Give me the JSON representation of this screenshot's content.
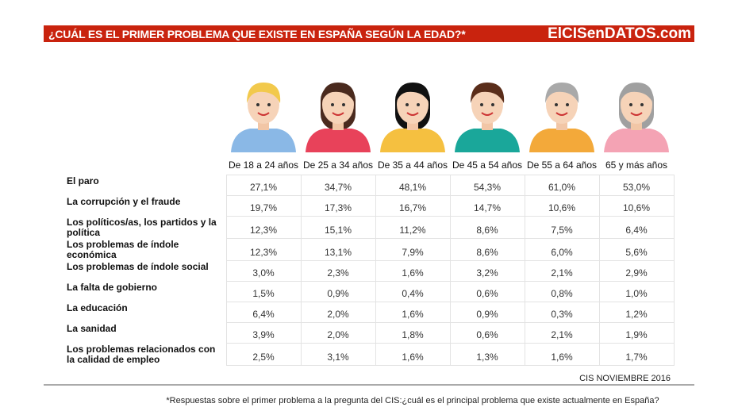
{
  "header": {
    "title": "¿CUÁL ES EL PRIMER PROBLEMA QUE EXISTE EN ESPAÑA SEGÚN LA EDAD?*",
    "brand": "ElCISenDATOS.com",
    "accent": "#c9230e"
  },
  "table": {
    "columns": [
      "De 18 a 24 años",
      "De 25 a 34 años",
      "De 35 a 44 años",
      "De 45 a 54 años",
      "De 55 a 64 años",
      "65 y más años"
    ],
    "rows": [
      {
        "label": "El paro",
        "values": [
          "27,1%",
          "34,7%",
          "48,1%",
          "54,3%",
          "61,0%",
          "53,0%"
        ]
      },
      {
        "label": "La corrupción y el fraude",
        "values": [
          "19,7%",
          "17,3%",
          "16,7%",
          "14,7%",
          "10,6%",
          "10,6%"
        ]
      },
      {
        "label": "Los políticos/as, los partidos y la política",
        "values": [
          "12,3%",
          "15,1%",
          "11,2%",
          "8,6%",
          "7,5%",
          "6,4%"
        ]
      },
      {
        "label": "Los problemas de índole económica",
        "values": [
          "12,3%",
          "13,1%",
          "7,9%",
          "8,6%",
          "6,0%",
          "5,6%"
        ]
      },
      {
        "label": "Los problemas de índole social",
        "values": [
          "3,0%",
          "2,3%",
          "1,6%",
          "3,2%",
          "2,1%",
          "2,9%"
        ]
      },
      {
        "label": "La falta de gobierno",
        "values": [
          "1,5%",
          "0,9%",
          "0,4%",
          "0,6%",
          "0,8%",
          "1,0%"
        ]
      },
      {
        "label": "La educación",
        "values": [
          "6,4%",
          "2,0%",
          "1,6%",
          "0,9%",
          "0,3%",
          "1,2%"
        ]
      },
      {
        "label": "La sanidad",
        "values": [
          "3,9%",
          "2,0%",
          "1,8%",
          "0,6%",
          "2,1%",
          "1,9%"
        ]
      },
      {
        "label": "Los problemas relacionados con la calidad de empleo",
        "values": [
          "2,5%",
          "3,1%",
          "1,6%",
          "1,3%",
          "1,6%",
          "1,7%"
        ]
      }
    ]
  },
  "avatars": [
    {
      "icon": "young-man-avatar-icon",
      "hair": "#f2c94c",
      "shirt": "#8ab8e6"
    },
    {
      "icon": "young-woman-avatar-icon",
      "hair": "#4a2a1e",
      "shirt": "#e8425a"
    },
    {
      "icon": "woman-avatar-icon",
      "hair": "#111111",
      "shirt": "#f5c040"
    },
    {
      "icon": "man-avatar-icon",
      "hair": "#5a2d1a",
      "shirt": "#1aa79a"
    },
    {
      "icon": "older-man-avatar-icon",
      "hair": "#a9a9a9",
      "shirt": "#f3a93a"
    },
    {
      "icon": "older-woman-avatar-icon",
      "hair": "#a0a0a0",
      "shirt": "#f4a3b4"
    }
  ],
  "footer": {
    "source": "CIS NOVIEMBRE 2016",
    "note": "*Respuestas sobre el primer problema a la pregunta del CIS:¿cuál es el principal problema que existe actualmente en España?"
  }
}
